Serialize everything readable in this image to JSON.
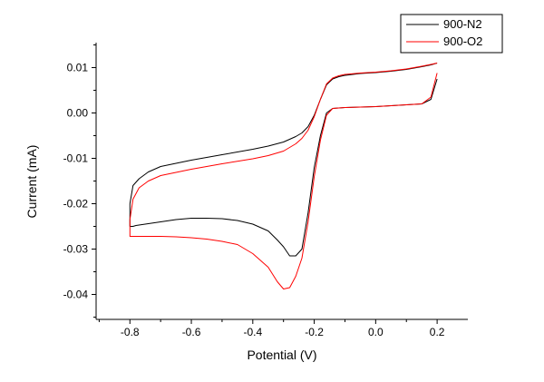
{
  "chart_data": {
    "type": "line",
    "xlabel": "Potential (V)",
    "ylabel": "Current (mA)",
    "xlim": [
      -0.91,
      0.3
    ],
    "ylim": [
      -0.0455,
      0.0155
    ],
    "xticks": [
      -0.8,
      -0.6,
      -0.4,
      -0.2,
      0.0,
      0.2
    ],
    "xtick_labels": [
      "-0.8",
      "-0.6",
      "-0.4",
      "-0.2",
      "0.0",
      "0.2"
    ],
    "yticks": [
      -0.04,
      -0.03,
      -0.02,
      -0.01,
      0.0,
      0.01
    ],
    "ytick_labels": [
      "-0.04",
      "-0.03",
      "-0.02",
      "-0.01",
      "0.00",
      "0.01"
    ],
    "legend_position": "top-right",
    "grid": false,
    "series": [
      {
        "name": "900-N2",
        "color": "#000000",
        "x": [
          0.2,
          0.18,
          0.15,
          0.1,
          0.05,
          0.0,
          -0.05,
          -0.1,
          -0.14,
          -0.16,
          -0.18,
          -0.2,
          -0.22,
          -0.24,
          -0.26,
          -0.28,
          -0.3,
          -0.32,
          -0.35,
          -0.4,
          -0.45,
          -0.5,
          -0.55,
          -0.6,
          -0.65,
          -0.7,
          -0.75,
          -0.78,
          -0.79,
          -0.8,
          -0.8,
          -0.79,
          -0.77,
          -0.74,
          -0.7,
          -0.6,
          -0.5,
          -0.4,
          -0.35,
          -0.3,
          -0.26,
          -0.24,
          -0.22,
          -0.2,
          -0.18,
          -0.16,
          -0.14,
          -0.12,
          -0.1,
          -0.05,
          0.0,
          0.05,
          0.1,
          0.15,
          0.18,
          0.2
        ],
        "y": [
          0.0075,
          0.003,
          0.002,
          0.0018,
          0.0016,
          0.0014,
          0.0013,
          0.0012,
          0.001,
          0.0,
          -0.005,
          -0.012,
          -0.022,
          -0.03,
          -0.0315,
          -0.0315,
          -0.0295,
          -0.028,
          -0.026,
          -0.0245,
          -0.0237,
          -0.0233,
          -0.0232,
          -0.0232,
          -0.0235,
          -0.024,
          -0.0245,
          -0.0248,
          -0.025,
          -0.025,
          -0.02,
          -0.016,
          -0.0145,
          -0.013,
          -0.0118,
          -0.0104,
          -0.0092,
          -0.008,
          -0.0073,
          -0.0064,
          -0.0052,
          -0.0044,
          -0.003,
          -0.0005,
          0.003,
          0.0062,
          0.0075,
          0.008,
          0.0083,
          0.0087,
          0.0089,
          0.0092,
          0.0096,
          0.0102,
          0.0106,
          0.011
        ]
      },
      {
        "name": "900-O2",
        "color": "#ff0000",
        "x": [
          0.2,
          0.18,
          0.15,
          0.1,
          0.05,
          0.0,
          -0.05,
          -0.1,
          -0.14,
          -0.16,
          -0.18,
          -0.2,
          -0.22,
          -0.24,
          -0.26,
          -0.28,
          -0.3,
          -0.32,
          -0.35,
          -0.4,
          -0.45,
          -0.5,
          -0.55,
          -0.6,
          -0.65,
          -0.7,
          -0.75,
          -0.78,
          -0.79,
          -0.8,
          -0.8,
          -0.79,
          -0.77,
          -0.74,
          -0.7,
          -0.6,
          -0.5,
          -0.4,
          -0.35,
          -0.3,
          -0.26,
          -0.24,
          -0.22,
          -0.2,
          -0.18,
          -0.16,
          -0.14,
          -0.12,
          -0.1,
          -0.05,
          0.0,
          0.05,
          0.1,
          0.15,
          0.18,
          0.2
        ],
        "y": [
          0.0088,
          0.0035,
          0.002,
          0.0018,
          0.0016,
          0.0014,
          0.0013,
          0.0012,
          0.001,
          -0.0005,
          -0.006,
          -0.014,
          -0.024,
          -0.032,
          -0.036,
          -0.0385,
          -0.0388,
          -0.0372,
          -0.034,
          -0.031,
          -0.029,
          -0.0283,
          -0.0278,
          -0.0275,
          -0.0273,
          -0.0272,
          -0.0272,
          -0.0272,
          -0.0272,
          -0.0272,
          -0.0235,
          -0.019,
          -0.0165,
          -0.015,
          -0.0138,
          -0.0124,
          -0.0112,
          -0.0101,
          -0.0094,
          -0.0084,
          -0.0068,
          -0.0056,
          -0.0038,
          -0.0008,
          0.003,
          0.0064,
          0.0077,
          0.0082,
          0.0085,
          0.0088,
          0.009,
          0.0093,
          0.0097,
          0.0103,
          0.0107,
          0.011
        ]
      }
    ]
  }
}
